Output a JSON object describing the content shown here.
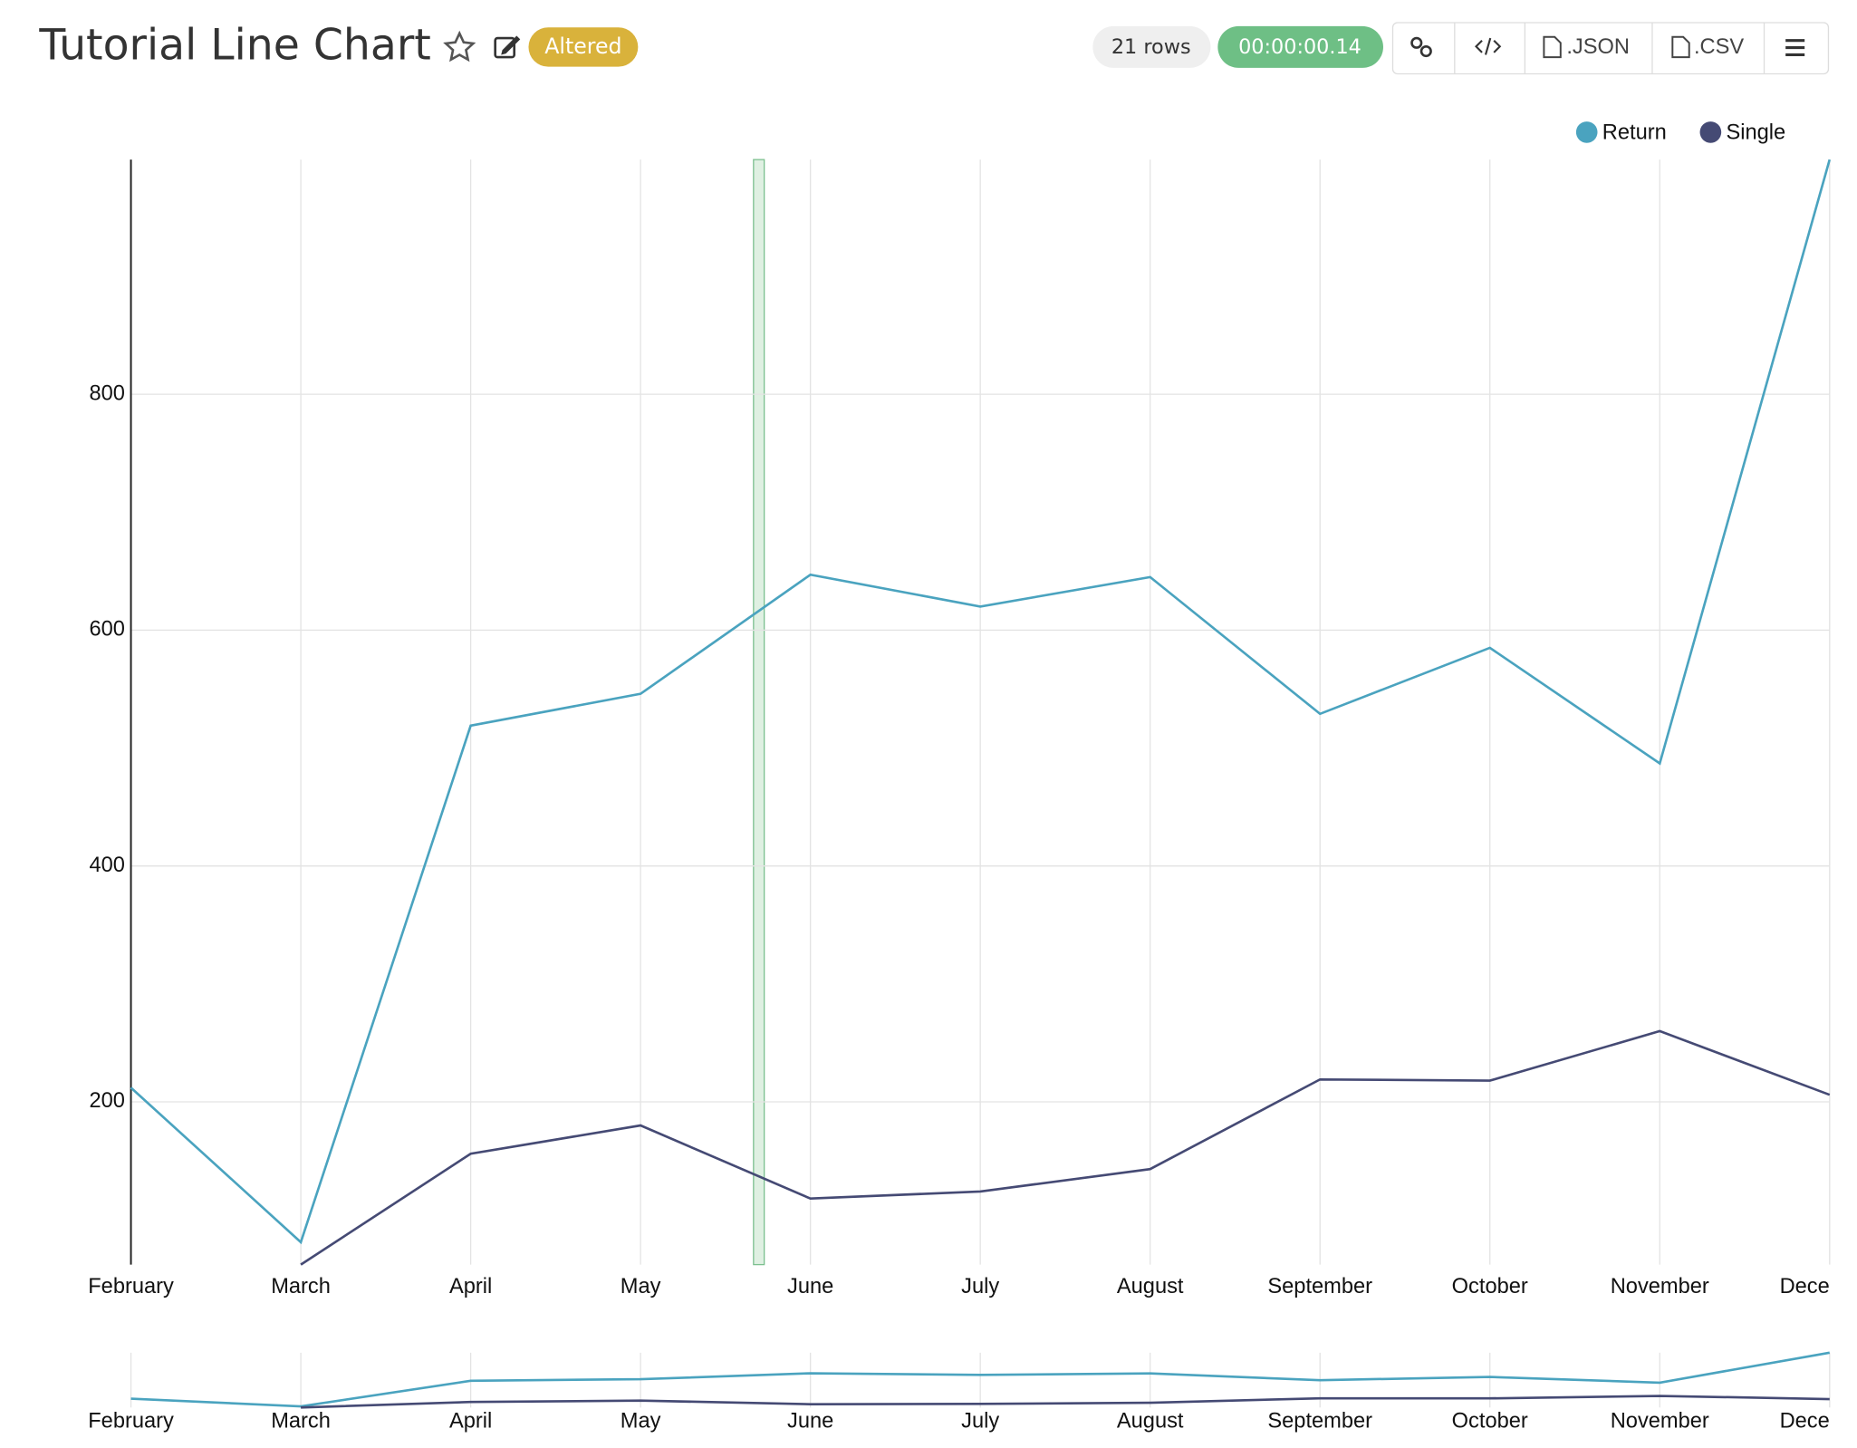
{
  "header": {
    "title": "Tutorial Line Chart",
    "badge": "Altered",
    "rows": "21 rows",
    "time": "00:00:00.14",
    "buttons": [
      ".JSON",
      ".CSV"
    ]
  },
  "chart_data": {
    "type": "line",
    "categories": [
      "February",
      "March",
      "April",
      "May",
      "June",
      "July",
      "August",
      "September",
      "October",
      "November",
      "Dece"
    ],
    "series": [
      {
        "name": "Return",
        "color": "#4aa3bf",
        "values": [
          212,
          81,
          519,
          546,
          647,
          620,
          645,
          529,
          585,
          487,
          999
        ]
      },
      {
        "name": "Single",
        "color": "#454a74",
        "values": [
          null,
          62,
          156,
          180,
          118,
          124,
          143,
          219,
          218,
          260,
          206
        ]
      }
    ],
    "ylim": [
      62,
      999
    ],
    "yticks": [
      200,
      400,
      600,
      800
    ],
    "grid": true,
    "legend": "top-right"
  }
}
